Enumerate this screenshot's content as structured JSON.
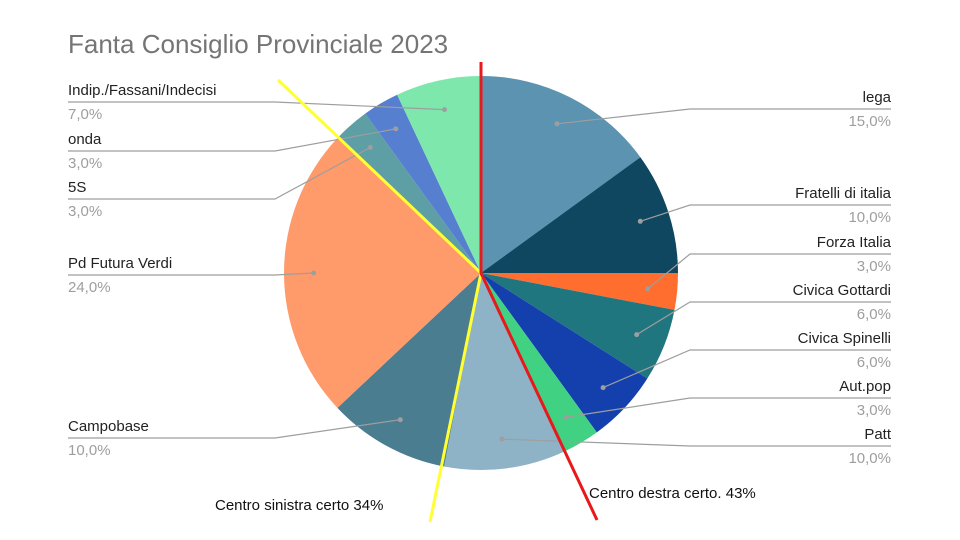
{
  "chart_data": {
    "type": "pie",
    "title": "Fanta Consiglio Provinciale 2023",
    "slices": [
      {
        "label": "lega",
        "value": 15.0,
        "display": "15,0%",
        "color": "#5b93b0"
      },
      {
        "label": "Fratelli di italia",
        "value": 10.0,
        "display": "10,0%",
        "color": "#0f4761"
      },
      {
        "label": "Forza Italia",
        "value": 3.0,
        "display": "3,0%",
        "color": "#ff6d2f"
      },
      {
        "label": "Civica Gottardi",
        "value": 6.0,
        "display": "6,0%",
        "color": "#20767f"
      },
      {
        "label": "Civica Spinelli",
        "value": 6.0,
        "display": "6,0%",
        "color": "#1340ad"
      },
      {
        "label": "Aut.pop",
        "value": 3.0,
        "display": "3,0%",
        "color": "#40d182"
      },
      {
        "label": "Patt",
        "value": 10.0,
        "display": "10,0%",
        "color": "#8fb3c6"
      },
      {
        "label": "Campobase",
        "value": 10.0,
        "display": "10,0%",
        "color": "#4b7d91"
      },
      {
        "label": "Pd Futura Verdi",
        "value": 24.0,
        "display": "24,0%",
        "color": "#ff9a6a"
      },
      {
        "label": "5S",
        "value": 3.0,
        "display": "3,0%",
        "color": "#5e9ea5"
      },
      {
        "label": "onda",
        "value": 3.0,
        "display": "3,0%",
        "color": "#567fcf"
      },
      {
        "label": "Indip./Fassani/Indecisi",
        "value": 7.0,
        "display": "7,0%",
        "color": "#7ee8ac"
      }
    ],
    "legend_position": "labels-outside",
    "annotations": [
      {
        "text": "Centro sinistra certo 34%",
        "color": "#ffff33"
      },
      {
        "text": "Centro destra certo. 43%",
        "color": "#e8181c"
      }
    ]
  }
}
